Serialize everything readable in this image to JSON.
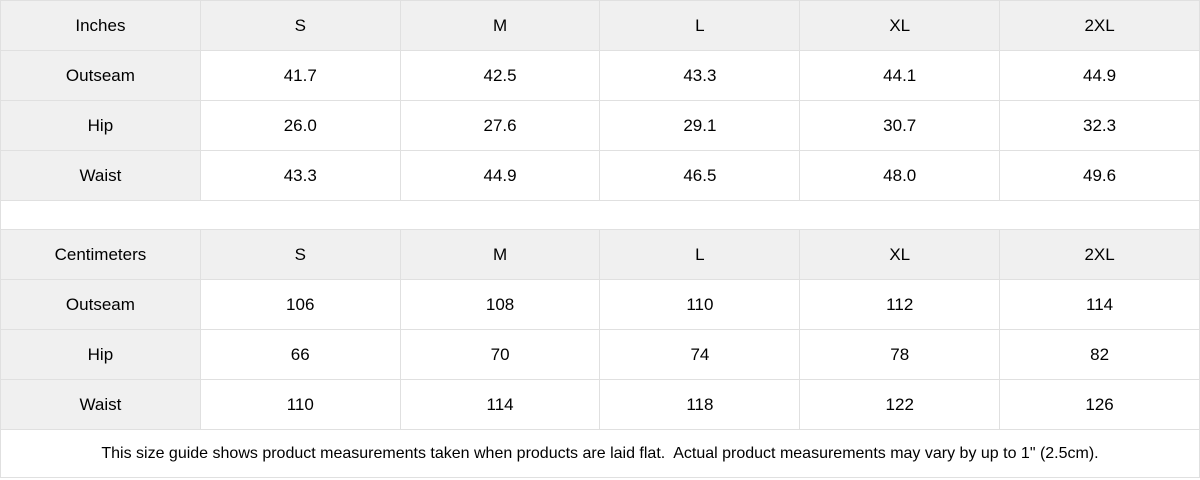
{
  "tables": [
    {
      "unit": "Inches",
      "sizes": [
        "S",
        "M",
        "L",
        "XL",
        "2XL"
      ],
      "rows": [
        {
          "label": "Outseam",
          "values": [
            "41.7",
            "42.5",
            "43.3",
            "44.1",
            "44.9"
          ]
        },
        {
          "label": "Hip",
          "values": [
            "26.0",
            "27.6",
            "29.1",
            "30.7",
            "32.3"
          ]
        },
        {
          "label": "Waist",
          "values": [
            "43.3",
            "44.9",
            "46.5",
            "48.0",
            "49.6"
          ]
        }
      ]
    },
    {
      "unit": "Centimeters",
      "sizes": [
        "S",
        "M",
        "L",
        "XL",
        "2XL"
      ],
      "rows": [
        {
          "label": "Outseam",
          "values": [
            "106",
            "108",
            "110",
            "112",
            "114"
          ]
        },
        {
          "label": "Hip",
          "values": [
            "66",
            "70",
            "74",
            "78",
            "82"
          ]
        },
        {
          "label": "Waist",
          "values": [
            "110",
            "114",
            "118",
            "122",
            "126"
          ]
        }
      ]
    }
  ],
  "footer": {
    "note": "This size guide shows product measurements taken when products are laid flat.  Actual product measurements may vary by up to 1\" (2.5cm)."
  },
  "colors": {
    "header_bg": "#f0f0f0",
    "border": "#e0e0e0",
    "text": "#000000"
  }
}
